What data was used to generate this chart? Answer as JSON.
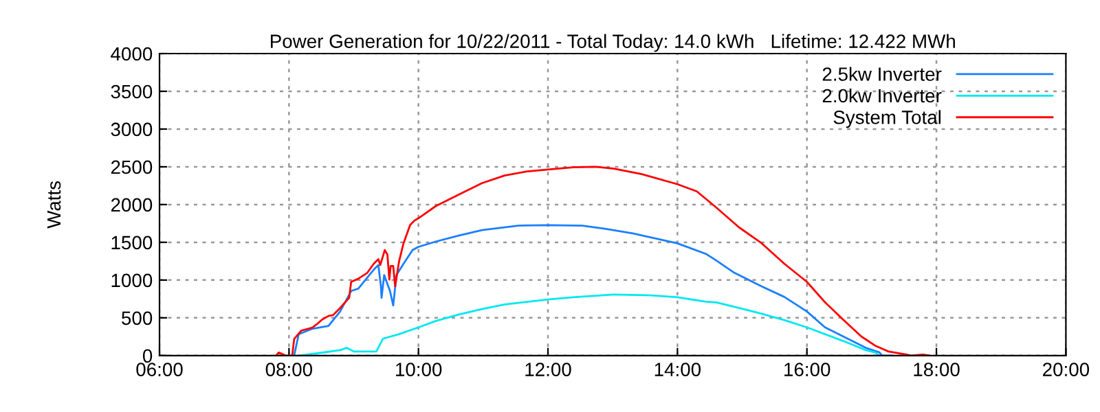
{
  "chart_data": {
    "type": "line",
    "title": "Power Generation for 10/22/2011 - Total Today: 14.0 kWh   Lifetime: 12.422 MWh",
    "ylabel": "Watts",
    "xlim": [
      6,
      20
    ],
    "xticks": [
      {
        "value": 6,
        "label": "06:00"
      },
      {
        "value": 8,
        "label": "08:00"
      },
      {
        "value": 10,
        "label": "10:00"
      },
      {
        "value": 12,
        "label": "12:00"
      },
      {
        "value": 14,
        "label": "14:00"
      },
      {
        "value": 16,
        "label": "16:00"
      },
      {
        "value": 18,
        "label": "18:00"
      },
      {
        "value": 20,
        "label": "20:00"
      }
    ],
    "ylim": [
      0,
      4000
    ],
    "yticks": [
      0,
      500,
      1000,
      1500,
      2000,
      2500,
      3000,
      3500,
      4000
    ],
    "grid": true,
    "legend": "top right",
    "line_style": "solid",
    "marker": "none",
    "series": [
      {
        "name": "2.5kw Inverter",
        "color": "#1a7fff",
        "x": [
          8.08,
          8.15,
          8.36,
          8.61,
          8.79,
          8.96,
          9.07,
          9.31,
          9.38,
          9.42,
          9.43,
          9.47,
          9.56,
          9.61,
          9.66,
          9.77,
          9.91,
          10.0,
          10.27,
          10.62,
          10.98,
          11.54,
          12.0,
          12.53,
          12.88,
          13.31,
          14.0,
          14.44,
          14.6,
          14.88,
          15.3,
          15.65,
          16.0,
          16.28,
          16.63,
          16.91,
          17.12,
          17.16,
          17.3
        ],
        "values": [
          0,
          283,
          355,
          392,
          584,
          855,
          886,
          1139,
          1199,
          916,
          765,
          1066,
          855,
          663,
          1066,
          1217,
          1398,
          1440,
          1510,
          1588,
          1661,
          1721,
          1727,
          1721,
          1679,
          1618,
          1486,
          1347,
          1259,
          1096,
          916,
          777,
          584,
          373,
          223,
          102,
          42,
          0,
          0
        ]
      },
      {
        "name": "2.0kw Inverter",
        "color": "#00e8f0",
        "x": [
          8.15,
          8.44,
          8.79,
          8.89,
          9.0,
          9.35,
          9.45,
          9.7,
          10.0,
          10.27,
          10.62,
          10.98,
          11.33,
          12.0,
          12.39,
          13.02,
          13.59,
          14.0,
          14.44,
          14.6,
          15.0,
          15.3,
          15.65,
          16.0,
          16.56,
          16.91,
          17.05,
          17.12
        ],
        "values": [
          0,
          30,
          72,
          102,
          54,
          54,
          223,
          283,
          373,
          459,
          543,
          616,
          676,
          743,
          773,
          809,
          797,
          773,
          713,
          705,
          620,
          554,
          470,
          373,
          193,
          72,
          42,
          0
        ]
      },
      {
        "name": "System Total",
        "color": "#ff0000",
        "x": [
          7.8,
          7.84,
          7.95,
          8.05,
          8.08,
          8.19,
          8.36,
          8.43,
          8.51,
          8.61,
          8.68,
          8.79,
          8.93,
          8.96,
          9.07,
          9.21,
          9.31,
          9.38,
          9.41,
          9.48,
          9.52,
          9.55,
          9.57,
          9.61,
          9.64,
          9.7,
          9.77,
          9.87,
          9.94,
          10.0,
          10.27,
          10.62,
          10.98,
          11.33,
          11.68,
          12.0,
          12.39,
          12.74,
          13.02,
          13.45,
          14.0,
          14.3,
          14.6,
          14.95,
          15.3,
          15.65,
          16.0,
          16.28,
          16.56,
          16.84,
          17.05,
          17.26,
          17.54,
          17.61,
          17.79,
          17.89
        ],
        "values": [
          0,
          40,
          0,
          0,
          220,
          330,
          370,
          415,
          475,
          525,
          535,
          630,
          765,
          976,
          1018,
          1096,
          1217,
          1277,
          1199,
          1398,
          1337,
          1006,
          1187,
          1187,
          916,
          1247,
          1488,
          1729,
          1789,
          1819,
          1981,
          2132,
          2283,
          2385,
          2440,
          2464,
          2494,
          2500,
          2476,
          2403,
          2270,
          2174,
          1960,
          1699,
          1488,
          1217,
          976,
          705,
          476,
          253,
          133,
          54,
          12,
          0,
          12,
          0
        ]
      }
    ]
  }
}
